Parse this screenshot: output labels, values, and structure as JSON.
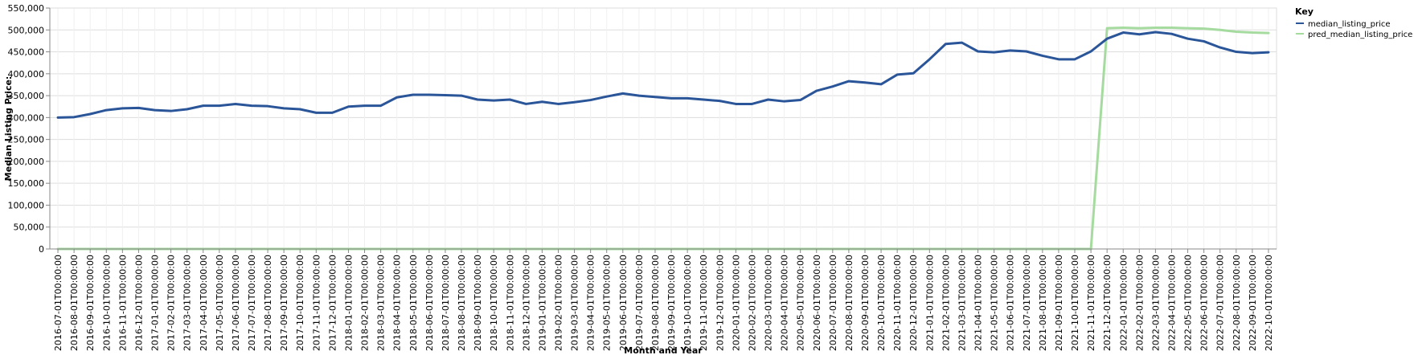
{
  "chart_data": {
    "type": "line",
    "xlabel": "Month and Year",
    "ylabel": "Median Listing Price:",
    "ylim": [
      0,
      550000
    ],
    "yticks": [
      0,
      50000,
      100000,
      150000,
      200000,
      250000,
      300000,
      350000,
      400000,
      450000,
      500000,
      550000
    ],
    "ytick_labels": [
      "0",
      "50,000",
      "100,000",
      "150,000",
      "200,000",
      "250,000",
      "300,000",
      "350,000",
      "400,000",
      "450,000",
      "500,000",
      "550,000"
    ],
    "grid": true,
    "legend": {
      "title": "Key",
      "placement": "right"
    },
    "x": [
      "2016-07-01T00:00:00",
      "2016-08-01T00:00:00",
      "2016-09-01T00:00:00",
      "2016-10-01T00:00:00",
      "2016-11-01T00:00:00",
      "2016-12-01T00:00:00",
      "2017-01-01T00:00:00",
      "2017-02-01T00:00:00",
      "2017-03-01T00:00:00",
      "2017-04-01T00:00:00",
      "2017-05-01T00:00:00",
      "2017-06-01T00:00:00",
      "2017-07-01T00:00:00",
      "2017-08-01T00:00:00",
      "2017-09-01T00:00:00",
      "2017-10-01T00:00:00",
      "2017-11-01T00:00:00",
      "2017-12-01T00:00:00",
      "2018-01-01T00:00:00",
      "2018-02-01T00:00:00",
      "2018-03-01T00:00:00",
      "2018-04-01T00:00:00",
      "2018-05-01T00:00:00",
      "2018-06-01T00:00:00",
      "2018-07-01T00:00:00",
      "2018-08-01T00:00:00",
      "2018-09-01T00:00:00",
      "2018-10-01T00:00:00",
      "2018-11-01T00:00:00",
      "2018-12-01T00:00:00",
      "2019-01-01T00:00:00",
      "2019-02-01T00:00:00",
      "2019-03-01T00:00:00",
      "2019-04-01T00:00:00",
      "2019-05-01T00:00:00",
      "2019-06-01T00:00:00",
      "2019-07-01T00:00:00",
      "2019-08-01T00:00:00",
      "2019-09-01T00:00:00",
      "2019-10-01T00:00:00",
      "2019-11-01T00:00:00",
      "2019-12-01T00:00:00",
      "2020-01-01T00:00:00",
      "2020-02-01T00:00:00",
      "2020-03-01T00:00:00",
      "2020-04-01T00:00:00",
      "2020-05-01T00:00:00",
      "2020-06-01T00:00:00",
      "2020-07-01T00:00:00",
      "2020-08-01T00:00:00",
      "2020-09-01T00:00:00",
      "2020-10-01T00:00:00",
      "2020-11-01T00:00:00",
      "2020-12-01T00:00:00",
      "2021-01-01T00:00:00",
      "2021-02-01T00:00:00",
      "2021-03-01T00:00:00",
      "2021-04-01T00:00:00",
      "2021-05-01T00:00:00",
      "2021-06-01T00:00:00",
      "2021-07-01T00:00:00",
      "2021-08-01T00:00:00",
      "2021-09-01T00:00:00",
      "2021-10-01T00:00:00",
      "2021-11-01T00:00:00",
      "2021-12-01T00:00:00",
      "2022-01-01T00:00:00",
      "2022-02-01T00:00:00",
      "2022-03-01T00:00:00",
      "2022-04-01T00:00:00",
      "2022-05-01T00:00:00",
      "2022-06-01T00:00:00",
      "2022-07-01T00:00:00",
      "2022-08-01T00:00:00",
      "2022-09-01T00:00:00",
      "2022-10-01T00:00:00"
    ],
    "series": [
      {
        "name": "median_listing_price",
        "color": "#2a5599",
        "values": [
          300000,
          301000,
          308000,
          317000,
          321000,
          322000,
          317000,
          315000,
          319000,
          327000,
          327000,
          331000,
          327000,
          326000,
          321000,
          319000,
          311000,
          311000,
          325000,
          327000,
          327000,
          346000,
          352000,
          352000,
          351000,
          350000,
          341000,
          339000,
          341000,
          331000,
          336000,
          331000,
          335000,
          340000,
          348000,
          355000,
          350000,
          347000,
          344000,
          344000,
          341000,
          338000,
          331000,
          331000,
          341000,
          337000,
          340000,
          361000,
          371000,
          383000,
          380000,
          376000,
          398000,
          401000,
          433000,
          468000,
          471000,
          451000,
          449000,
          453000,
          451000,
          441000,
          433000,
          433000,
          451000,
          480000,
          494000,
          490000,
          495000,
          491000,
          480000,
          474000,
          460000,
          450000,
          447000,
          449000
        ]
      },
      {
        "name": "pred_median_listing_price",
        "color": "#a6dba0",
        "values": [
          0,
          0,
          0,
          0,
          0,
          0,
          0,
          0,
          0,
          0,
          0,
          0,
          0,
          0,
          0,
          0,
          0,
          0,
          0,
          0,
          0,
          0,
          0,
          0,
          0,
          0,
          0,
          0,
          0,
          0,
          0,
          0,
          0,
          0,
          0,
          0,
          0,
          0,
          0,
          0,
          0,
          0,
          0,
          0,
          0,
          0,
          0,
          0,
          0,
          0,
          0,
          0,
          0,
          0,
          0,
          0,
          0,
          0,
          0,
          0,
          0,
          0,
          0,
          0,
          0,
          504000,
          505000,
          504000,
          505000,
          505000,
          504000,
          503000,
          500000,
          496000,
          494000,
          493000
        ]
      }
    ]
  }
}
